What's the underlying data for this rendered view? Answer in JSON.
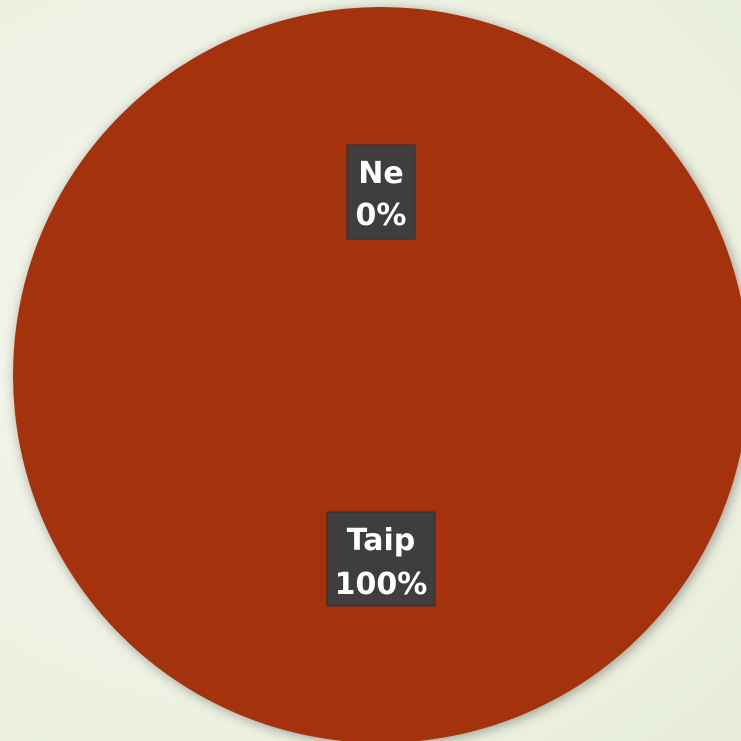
{
  "chart_data": {
    "type": "pie",
    "categories": [
      "Ne",
      "Taip"
    ],
    "values": [
      0,
      100
    ],
    "labels": [
      {
        "category": "Ne",
        "percent": "0%"
      },
      {
        "category": "Taip",
        "percent": "100%"
      }
    ],
    "colors": {
      "Ne": "#a4300f",
      "Taip": "#a4300f"
    },
    "label_box_color": "#3e3e3e",
    "legend": "none"
  }
}
